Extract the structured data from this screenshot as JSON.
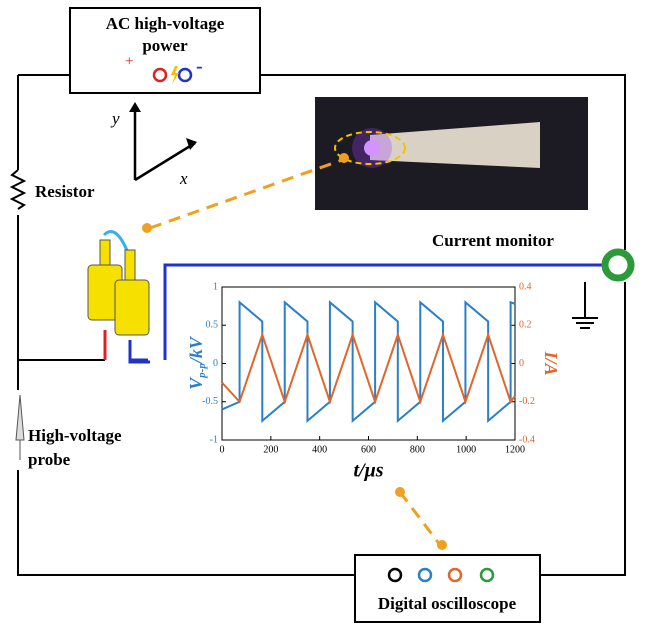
{
  "power_supply": {
    "label": [
      "AC high-voltage",
      "power"
    ],
    "plus": "+",
    "minus": "-"
  },
  "resistor": "Resistor",
  "current_monitor": "Current monitor",
  "probe": [
    "High-voltage",
    "probe"
  ],
  "oscilloscope": "Digital oscilloscope",
  "axes": {
    "y": "y",
    "x": "x"
  },
  "chart_data": {
    "type": "line",
    "x_label": "t/μs",
    "y_label": {
      "main": "V",
      "sub": "p-p",
      "unit": "/kV"
    },
    "y2_label": "I/A",
    "xlim": [
      0,
      1200
    ],
    "xticks": [
      0,
      200,
      400,
      600,
      800,
      1000,
      1200
    ],
    "ylim": [
      -1,
      1
    ],
    "yticks": [
      -1,
      -0.5,
      0,
      0.5,
      1
    ],
    "y2lim": [
      -0.4,
      0.4
    ],
    "y2ticks": [
      -0.4,
      -0.2,
      0,
      0.2,
      0.4
    ],
    "series": [
      {
        "color": "#2a7fc9",
        "x": [
          0,
          72,
          72,
          165,
          165,
          257,
          257,
          350,
          350,
          442,
          442,
          535,
          535,
          627,
          627,
          720,
          720,
          812,
          812,
          905,
          905,
          997,
          997,
          1090,
          1090,
          1182,
          1182,
          1200
        ],
        "values": [
          -0.6,
          -0.5,
          0.8,
          0.55,
          -0.75,
          -0.5,
          0.8,
          0.55,
          -0.75,
          -0.5,
          0.8,
          0.55,
          -0.75,
          -0.5,
          0.8,
          0.55,
          -0.75,
          -0.5,
          0.8,
          0.55,
          -0.75,
          -0.5,
          0.8,
          0.55,
          -0.75,
          -0.5,
          0.8,
          0.78
        ]
      },
      {
        "color": "#e0662a",
        "axis": "y2",
        "x": [
          0,
          72,
          165,
          257,
          350,
          442,
          535,
          627,
          720,
          812,
          905,
          997,
          1090,
          1182,
          1200
        ],
        "values": [
          -0.1,
          -0.2,
          0.15,
          -0.2,
          0.15,
          -0.2,
          0.15,
          -0.2,
          0.15,
          -0.2,
          0.15,
          -0.2,
          0.15,
          -0.2,
          -0.17
        ]
      }
    ]
  }
}
